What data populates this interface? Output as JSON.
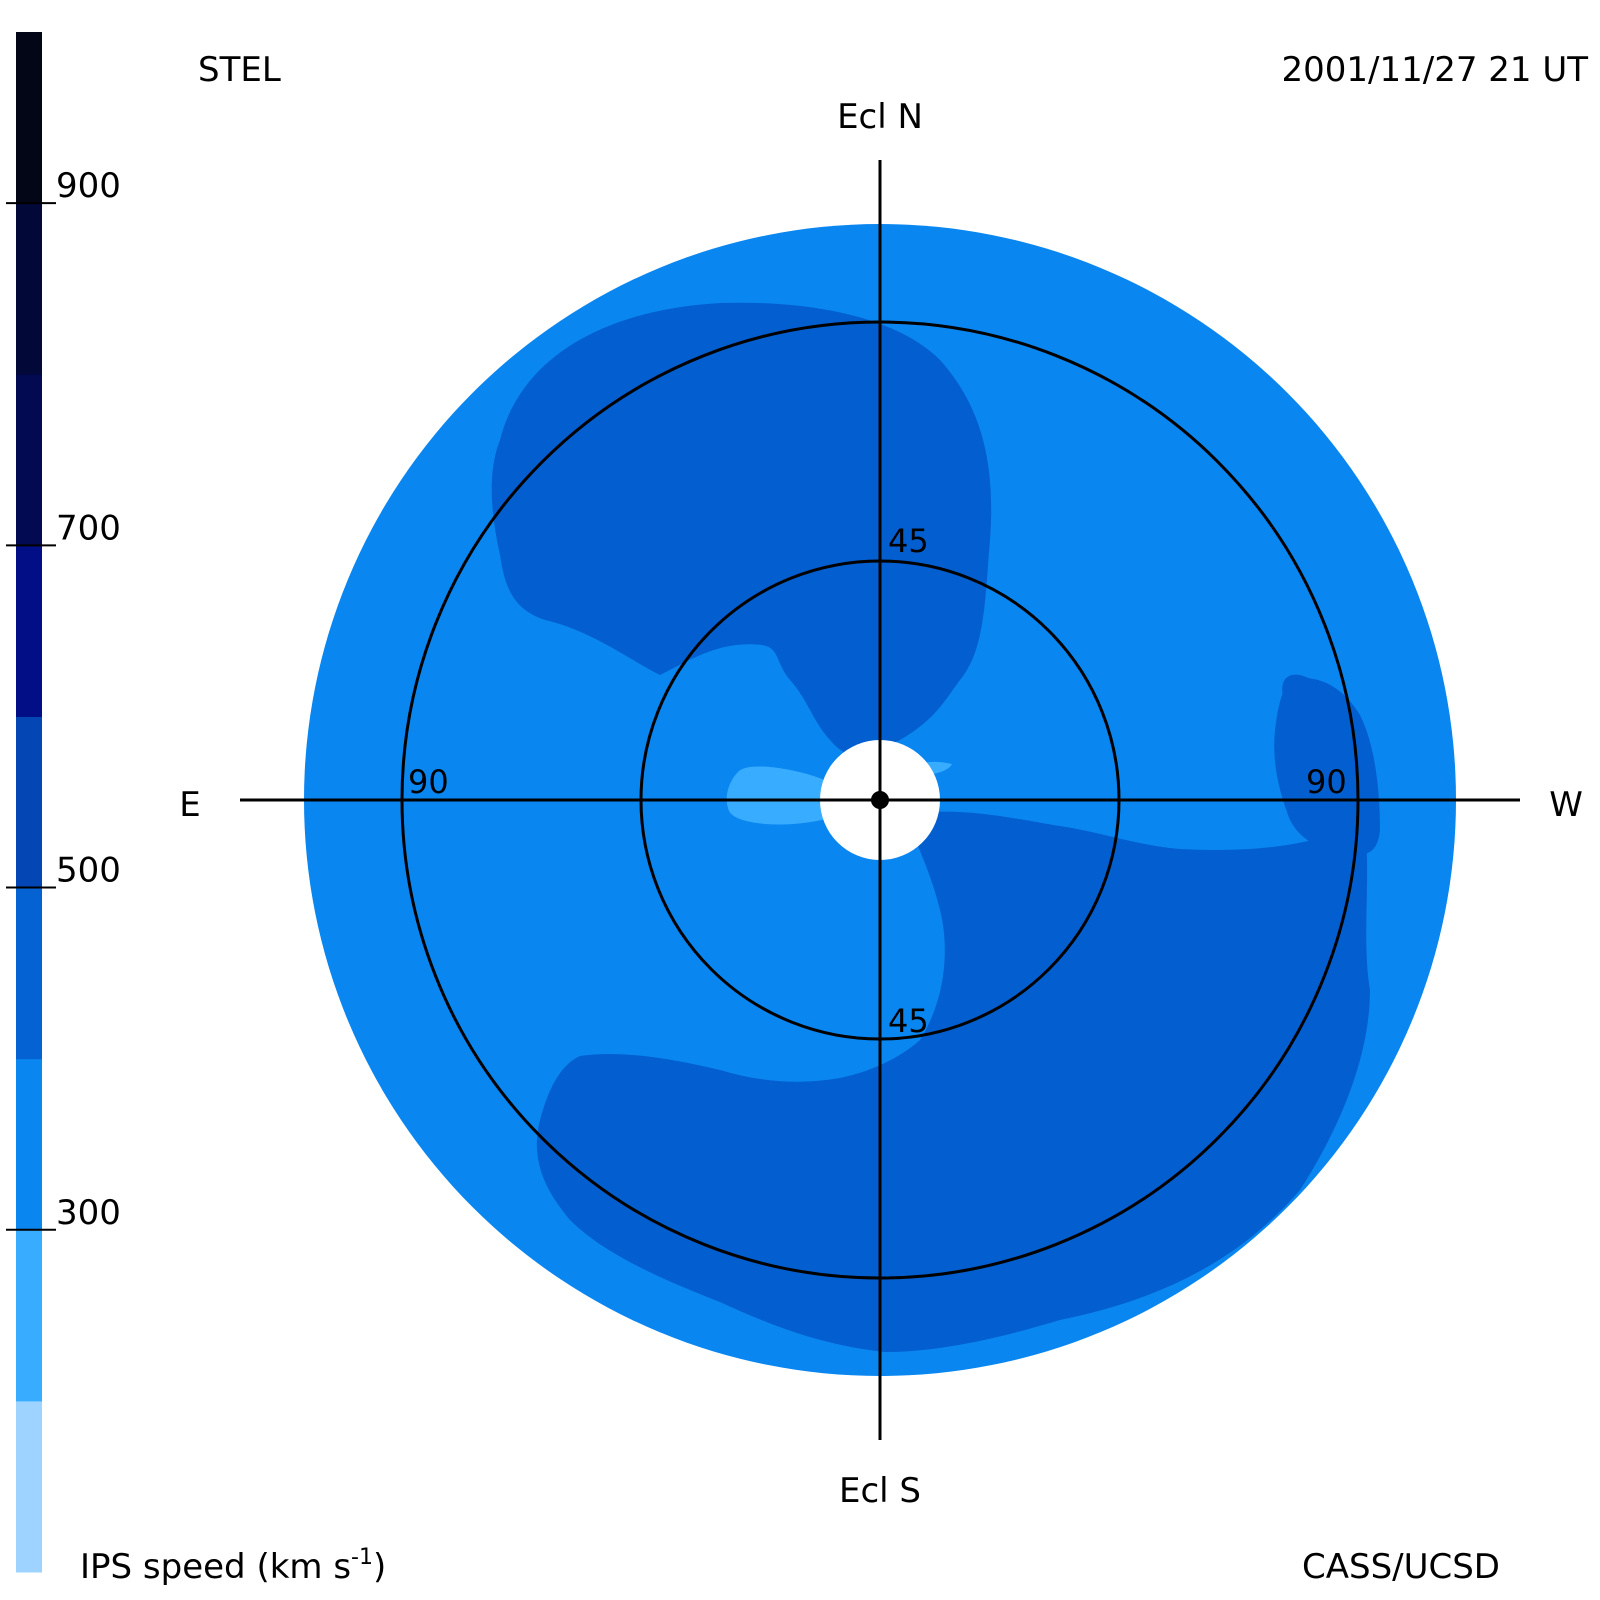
{
  "header": {
    "observatory": "STEL",
    "datetime": "2001/11/27 21 UT"
  },
  "footer": {
    "colorbar_title": "IPS speed (km s",
    "colorbar_title_exp": "-1",
    "colorbar_title_close": ")",
    "credit": "CASS/UCSD"
  },
  "axes": {
    "north": "Ecl N",
    "south": "Ecl S",
    "east": "E",
    "west": "W"
  },
  "rings": {
    "inner_north": "45",
    "inner_south": "45",
    "outer_east": "90",
    "outer_west": "90"
  },
  "colorbar": {
    "tick_labels": [
      "900",
      "700",
      "500",
      "300"
    ],
    "tick_values": [
      900,
      700,
      500,
      300
    ],
    "range": [
      100,
      1000
    ],
    "bands": [
      {
        "from": 100,
        "to": 200,
        "color": "#9fd3ff"
      },
      {
        "from": 200,
        "to": 300,
        "color": "#38acff"
      },
      {
        "from": 300,
        "to": 400,
        "color": "#0a86f0"
      },
      {
        "from": 400,
        "to": 500,
        "color": "#0462d2"
      },
      {
        "from": 500,
        "to": 600,
        "color": "#0346b4"
      },
      {
        "from": 600,
        "to": 700,
        "color": "#020e86"
      },
      {
        "from": 700,
        "to": 800,
        "color": "#020a52"
      },
      {
        "from": 800,
        "to": 900,
        "color": "#020838"
      },
      {
        "from": 900,
        "to": 1000,
        "color": "#020616"
      }
    ]
  },
  "map_colors": {
    "background_speed": "#0a86f0",
    "fast_region": "#035fd0",
    "slow_patch": "#38acff",
    "sun_mask": "#ffffff"
  }
}
